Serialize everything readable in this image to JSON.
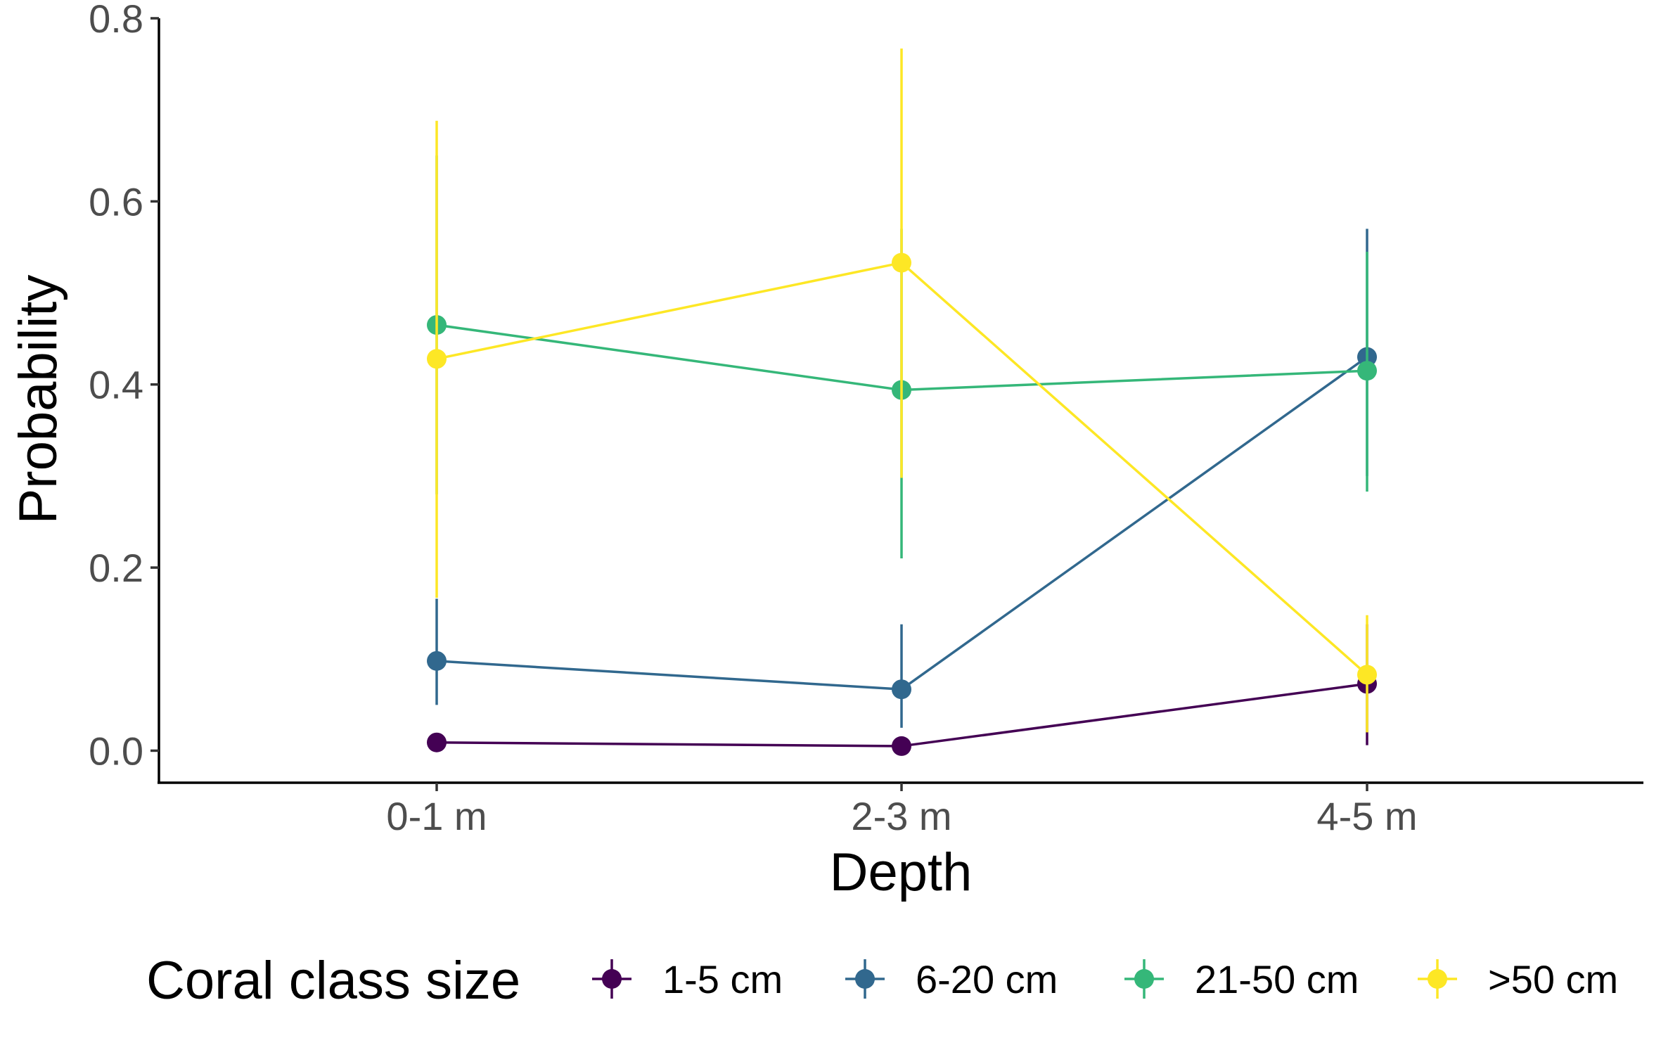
{
  "chart_data": {
    "type": "line",
    "xlabel": "Depth",
    "ylabel": "Probability",
    "categories": [
      "0-1 m",
      "2-3 m",
      "4-5 m"
    ],
    "ylim": [
      -0.035,
      0.8
    ],
    "yticks": [
      0.0,
      0.2,
      0.4,
      0.6,
      0.8
    ],
    "ytick_labels": [
      "0.0",
      "0.2",
      "0.4",
      "0.6",
      "0.8"
    ],
    "grid": false,
    "legend": {
      "title": "Coral class size",
      "position": "bottom"
    },
    "series": [
      {
        "name": "1-5 cm",
        "color": "#440154",
        "values": [
          0.009,
          0.005,
          0.073
        ],
        "lower": [
          0.002,
          0.001,
          0.006
        ],
        "upper": [
          0.018,
          0.012,
          0.138
        ]
      },
      {
        "name": "6-20 cm",
        "color": "#31688E",
        "values": [
          0.098,
          0.067,
          0.43
        ],
        "lower": [
          0.05,
          0.025,
          0.3
        ],
        "upper": [
          0.166,
          0.138,
          0.57
        ]
      },
      {
        "name": "21-50 cm",
        "color": "#35B779",
        "values": [
          0.465,
          0.394,
          0.415
        ],
        "lower": [
          0.28,
          0.21,
          0.283
        ],
        "upper": [
          0.65,
          0.57,
          0.545
        ]
      },
      {
        "name": ">50 cm",
        "color": "#FDE725",
        "values": [
          0.428,
          0.533,
          0.083
        ],
        "lower": [
          0.167,
          0.298,
          0.02
        ],
        "upper": [
          0.688,
          0.767,
          0.148
        ]
      }
    ]
  }
}
